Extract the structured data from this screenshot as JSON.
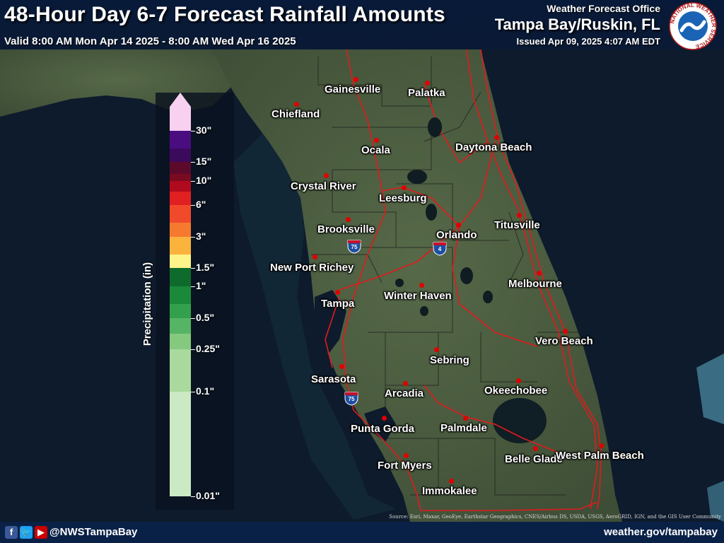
{
  "header": {
    "title": "48-Hour Day 6-7 Forecast Rainfall Amounts",
    "valid": "Valid 8:00 AM Mon Apr 14 2025 - 8:00 AM Wed Apr 16 2025",
    "office_top": "Weather Forecast Office",
    "office_main": "Tampa Bay/Ruskin, FL",
    "issued": "Issued Apr 09, 2025 4:07 AM EDT"
  },
  "logo": {
    "ring_text": "NATIONAL WEATHER SERVICE",
    "icon": "nws-logo"
  },
  "legend": {
    "axis_label": "Precipitation (in)",
    "labels": [
      "30\"",
      "15\"",
      "10\"",
      "6\"",
      "3\"",
      "1.5\"",
      "1\"",
      "0.5\"",
      "0.25\"",
      "0.1\"",
      "0.01\""
    ],
    "colors": [
      "#f8d0f0",
      "#4a0d80",
      "#3c0a5c",
      "#5c0a2c",
      "#7a0a20",
      "#b00a1e",
      "#e02020",
      "#f04a2a",
      "#f57a30",
      "#fbb33e",
      "#fdf48a",
      "#0f6b2c",
      "#1a8a3a",
      "#33a04e",
      "#56b465",
      "#85c97e",
      "#a9d99c",
      "#cbe9c3"
    ],
    "arrow_color": "#f8d0f0"
  },
  "cities": [
    "Gainesville",
    "Palatka",
    "Chiefland",
    "Ocala",
    "Daytona Beach",
    "Crystal River",
    "Leesburg",
    "Brooksville",
    "Orlando",
    "Titusville",
    "New Port Richey",
    "Tampa",
    "Winter Haven",
    "Melbourne",
    "Vero Beach",
    "Sarasota",
    "Arcadia",
    "Sebring",
    "Okeechobee",
    "Punta Gorda",
    "Palmdale",
    "Belle Glade",
    "West Palm Beach",
    "Fort Myers",
    "Immokalee"
  ],
  "shields": [
    "75",
    "4",
    "75"
  ],
  "attribution": "Source: Esri, Maxar, GeoEye, Earthstar Geographics, CNES/Airbus DS, USDA, USGS, AeroGRID, IGN, and the GIS User Community",
  "footer": {
    "social_icons": [
      "facebook-icon",
      "twitter-icon",
      "youtube-icon"
    ],
    "handle": "@NWSTampaBay",
    "site": "weather.gov/tampabay"
  },
  "colors": {
    "water": "#0d1b2c",
    "land": "#4a5b3d",
    "roads": "#e31a1c",
    "county_lines": "#1a1a1a",
    "header_bg": "#081a3a",
    "footer_bg": "#0a2147",
    "city_dot": "#e00000"
  }
}
